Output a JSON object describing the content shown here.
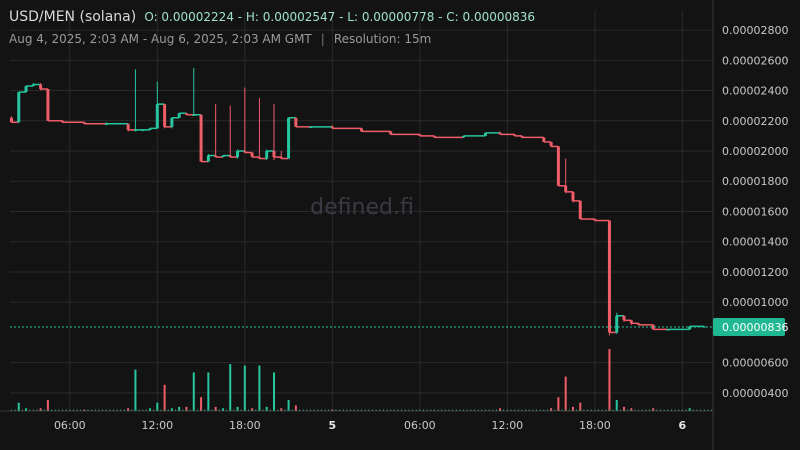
{
  "header": {
    "pair": "USD/MEN (solana)",
    "ohlc": "O: 0.00002224 - H: 0.00002547 - L: 0.00000778 - C: 0.00000836",
    "range": "Aug 4, 2025, 2:03 AM - Aug 6, 2025, 2:03 AM GMT",
    "separator": "|",
    "resolution": "Resolution: 15m"
  },
  "watermark": "defined.fi",
  "colors": {
    "up": "#26c6a0",
    "down": "#ef5d68",
    "grid": "#2a2a2a",
    "price_line": "#26c6a0",
    "background": "#131313"
  },
  "chart_data": {
    "type": "candlestick",
    "symbol": "USD/MEN (solana)",
    "resolution": "15m",
    "x_ticks": [
      {
        "t": 4.0,
        "label": "06:00",
        "bold": false
      },
      {
        "t": 10.0,
        "label": "12:00",
        "bold": false
      },
      {
        "t": 16.0,
        "label": "18:00",
        "bold": false
      },
      {
        "t": 22.0,
        "label": "5",
        "bold": true
      },
      {
        "t": 28.0,
        "label": "06:00",
        "bold": false
      },
      {
        "t": 34.0,
        "label": "12:00",
        "bold": false
      },
      {
        "t": 40.0,
        "label": "18:00",
        "bold": false
      },
      {
        "t": 46.0,
        "label": "6",
        "bold": true
      }
    ],
    "x_range_hours": [
      -0.1,
      48.1
    ],
    "y_ticks": [
      4e-06,
      6e-06,
      1e-05,
      1.2e-05,
      1.4e-05,
      1.6e-05,
      1.8e-05,
      2e-05,
      2.2e-05,
      2.4e-05,
      2.6e-05,
      2.8e-05
    ],
    "y_tick_labels": [
      "0.00000400",
      "0.00000600",
      "0.00001000",
      "0.00001200",
      "0.00001400",
      "0.00001600",
      "0.00001800",
      "0.00002000",
      "0.00002200",
      "0.00002400",
      "0.00002600",
      "0.00002800"
    ],
    "y_range": [
      2.8e-06,
      2.88e-05
    ],
    "last_price": 8.36e-06,
    "last_price_label": "0.00000836",
    "candles": [
      {
        "t": 0.0,
        "o": 2.22e-05,
        "h": 2.23e-05,
        "l": 2.19e-05,
        "c": 2.19e-05
      },
      {
        "t": 0.5,
        "o": 2.19e-05,
        "h": 2.39e-05,
        "l": 2.19e-05,
        "c": 2.39e-05
      },
      {
        "t": 1.0,
        "o": 2.39e-05,
        "h": 2.43e-05,
        "l": 2.39e-05,
        "c": 2.43e-05
      },
      {
        "t": 1.5,
        "o": 2.43e-05,
        "h": 2.45e-05,
        "l": 2.43e-05,
        "c": 2.44e-05
      },
      {
        "t": 2.0,
        "o": 2.44e-05,
        "h": 2.45e-05,
        "l": 2.4e-05,
        "c": 2.41e-05
      },
      {
        "t": 2.5,
        "o": 2.41e-05,
        "h": 2.41e-05,
        "l": 2.2e-05,
        "c": 2.2e-05
      },
      {
        "t": 3.5,
        "o": 2.2e-05,
        "h": 2.2e-05,
        "l": 2.19e-05,
        "c": 2.19e-05
      },
      {
        "t": 5.0,
        "o": 2.19e-05,
        "h": 2.19e-05,
        "l": 2.18e-05,
        "c": 2.18e-05
      },
      {
        "t": 6.5,
        "o": 2.18e-05,
        "h": 2.19e-05,
        "l": 2.18e-05,
        "c": 2.18e-05
      },
      {
        "t": 8.0,
        "o": 2.18e-05,
        "h": 2.18e-05,
        "l": 2.13e-05,
        "c": 2.14e-05
      },
      {
        "t": 8.5,
        "o": 2.14e-05,
        "h": 2.54e-05,
        "l": 2.13e-05,
        "c": 2.14e-05
      },
      {
        "t": 9.0,
        "o": 2.14e-05,
        "h": 2.14e-05,
        "l": 2.14e-05,
        "c": 2.14e-05
      },
      {
        "t": 9.5,
        "o": 2.14e-05,
        "h": 2.15e-05,
        "l": 2.14e-05,
        "c": 2.15e-05
      },
      {
        "t": 10.0,
        "o": 2.15e-05,
        "h": 2.46e-05,
        "l": 2.15e-05,
        "c": 2.31e-05
      },
      {
        "t": 10.5,
        "o": 2.31e-05,
        "h": 2.31e-05,
        "l": 2.15e-05,
        "c": 2.16e-05
      },
      {
        "t": 11.0,
        "o": 2.16e-05,
        "h": 2.22e-05,
        "l": 2.15e-05,
        "c": 2.22e-05
      },
      {
        "t": 11.5,
        "o": 2.22e-05,
        "h": 2.25e-05,
        "l": 2.22e-05,
        "c": 2.25e-05
      },
      {
        "t": 12.0,
        "o": 2.25e-05,
        "h": 2.25e-05,
        "l": 2.24e-05,
        "c": 2.24e-05
      },
      {
        "t": 12.5,
        "o": 2.24e-05,
        "h": 2.55e-05,
        "l": 2.24e-05,
        "c": 2.24e-05
      },
      {
        "t": 13.0,
        "o": 2.24e-05,
        "h": 2.24e-05,
        "l": 1.93e-05,
        "c": 1.93e-05
      },
      {
        "t": 13.5,
        "o": 1.93e-05,
        "h": 1.98e-05,
        "l": 1.93e-05,
        "c": 1.97e-05
      },
      {
        "t": 14.0,
        "o": 1.97e-05,
        "h": 2.31e-05,
        "l": 1.96e-05,
        "c": 1.96e-05
      },
      {
        "t": 14.5,
        "o": 1.96e-05,
        "h": 1.97e-05,
        "l": 1.96e-05,
        "c": 1.97e-05
      },
      {
        "t": 15.0,
        "o": 1.97e-05,
        "h": 2.3e-05,
        "l": 1.96e-05,
        "c": 1.96e-05
      },
      {
        "t": 15.5,
        "o": 1.96e-05,
        "h": 2.01e-05,
        "l": 1.95e-05,
        "c": 2e-05
      },
      {
        "t": 16.0,
        "o": 2e-05,
        "h": 2.42e-05,
        "l": 1.99e-05,
        "c": 1.99e-05
      },
      {
        "t": 16.5,
        "o": 1.99e-05,
        "h": 1.99e-05,
        "l": 1.96e-05,
        "c": 1.96e-05
      },
      {
        "t": 17.0,
        "o": 1.96e-05,
        "h": 2.35e-05,
        "l": 1.95e-05,
        "c": 1.95e-05
      },
      {
        "t": 17.5,
        "o": 1.95e-05,
        "h": 2.01e-05,
        "l": 1.94e-05,
        "c": 2e-05
      },
      {
        "t": 18.0,
        "o": 2e-05,
        "h": 2.31e-05,
        "l": 1.94e-05,
        "c": 1.96e-05
      },
      {
        "t": 18.5,
        "o": 1.96e-05,
        "h": 2e-05,
        "l": 1.95e-05,
        "c": 1.95e-05
      },
      {
        "t": 19.0,
        "o": 1.95e-05,
        "h": 2.22e-05,
        "l": 1.95e-05,
        "c": 2.22e-05
      },
      {
        "t": 19.5,
        "o": 2.22e-05,
        "h": 2.22e-05,
        "l": 2.16e-05,
        "c": 2.16e-05
      },
      {
        "t": 20.5,
        "o": 2.16e-05,
        "h": 2.16e-05,
        "l": 2.16e-05,
        "c": 2.16e-05
      },
      {
        "t": 22.0,
        "o": 2.16e-05,
        "h": 2.17e-05,
        "l": 2.15e-05,
        "c": 2.15e-05
      },
      {
        "t": 24.0,
        "o": 2.15e-05,
        "h": 2.15e-05,
        "l": 2.13e-05,
        "c": 2.13e-05
      },
      {
        "t": 26.0,
        "o": 2.13e-05,
        "h": 2.13e-05,
        "l": 2.11e-05,
        "c": 2.11e-05
      },
      {
        "t": 28.0,
        "o": 2.11e-05,
        "h": 2.11e-05,
        "l": 2.1e-05,
        "c": 2.1e-05
      },
      {
        "t": 29.0,
        "o": 2.1e-05,
        "h": 2.1e-05,
        "l": 2.09e-05,
        "c": 2.09e-05
      },
      {
        "t": 31.0,
        "o": 2.09e-05,
        "h": 2.1e-05,
        "l": 2.09e-05,
        "c": 2.1e-05
      },
      {
        "t": 32.5,
        "o": 2.1e-05,
        "h": 2.12e-05,
        "l": 2.1e-05,
        "c": 2.12e-05
      },
      {
        "t": 33.5,
        "o": 2.12e-05,
        "h": 2.13e-05,
        "l": 2.11e-05,
        "c": 2.11e-05
      },
      {
        "t": 34.5,
        "o": 2.11e-05,
        "h": 2.11e-05,
        "l": 2.1e-05,
        "c": 2.1e-05
      },
      {
        "t": 35.0,
        "o": 2.1e-05,
        "h": 2.1e-05,
        "l": 2.09e-05,
        "c": 2.09e-05
      },
      {
        "t": 36.5,
        "o": 2.09e-05,
        "h": 2.09e-05,
        "l": 2.06e-05,
        "c": 2.06e-05
      },
      {
        "t": 37.0,
        "o": 2.06e-05,
        "h": 2.06e-05,
        "l": 2.03e-05,
        "c": 2.03e-05
      },
      {
        "t": 37.5,
        "o": 2.03e-05,
        "h": 2.03e-05,
        "l": 1.77e-05,
        "c": 1.77e-05
      },
      {
        "t": 38.0,
        "o": 1.77e-05,
        "h": 1.95e-05,
        "l": 1.72e-05,
        "c": 1.73e-05
      },
      {
        "t": 38.5,
        "o": 1.73e-05,
        "h": 1.73e-05,
        "l": 1.66e-05,
        "c": 1.67e-05
      },
      {
        "t": 39.0,
        "o": 1.67e-05,
        "h": 1.67e-05,
        "l": 1.55e-05,
        "c": 1.55e-05
      },
      {
        "t": 40.0,
        "o": 1.55e-05,
        "h": 1.55e-05,
        "l": 1.54e-05,
        "c": 1.54e-05
      },
      {
        "t": 41.0,
        "o": 1.54e-05,
        "h": 1.54e-05,
        "l": 7.8e-06,
        "c": 8e-06
      },
      {
        "t": 41.5,
        "o": 8e-06,
        "h": 9.3e-06,
        "l": 7.9e-06,
        "c": 9.1e-06
      },
      {
        "t": 42.0,
        "o": 9.1e-06,
        "h": 9.1e-06,
        "l": 8.7e-06,
        "c": 8.8e-06
      },
      {
        "t": 42.5,
        "o": 8.8e-06,
        "h": 8.8e-06,
        "l": 8.5e-06,
        "c": 8.6e-06
      },
      {
        "t": 43.0,
        "o": 8.6e-06,
        "h": 8.6e-06,
        "l": 8.5e-06,
        "c": 8.5e-06
      },
      {
        "t": 44.0,
        "o": 8.5e-06,
        "h": 8.5e-06,
        "l": 8.2e-06,
        "c": 8.2e-06
      },
      {
        "t": 45.0,
        "o": 8.2e-06,
        "h": 8.2e-06,
        "l": 8.2e-06,
        "c": 8.2e-06
      },
      {
        "t": 46.5,
        "o": 8.2e-06,
        "h": 8.4e-06,
        "l": 8.2e-06,
        "c": 8.4e-06
      },
      {
        "t": 47.5,
        "o": 8.4e-06,
        "h": 8.4e-06,
        "l": 8.4e-06,
        "c": 8.4e-06
      }
    ],
    "volume": [
      {
        "t": 0.5,
        "v": 6,
        "up": true
      },
      {
        "t": 1.0,
        "v": 2,
        "up": true
      },
      {
        "t": 2.0,
        "v": 2,
        "up": false
      },
      {
        "t": 2.5,
        "v": 8,
        "up": false
      },
      {
        "t": 5.0,
        "v": 1,
        "up": false
      },
      {
        "t": 8.0,
        "v": 2,
        "up": false
      },
      {
        "t": 8.5,
        "v": 30,
        "up": true
      },
      {
        "t": 9.5,
        "v": 2,
        "up": true
      },
      {
        "t": 10.0,
        "v": 6,
        "up": true
      },
      {
        "t": 10.5,
        "v": 19,
        "up": false
      },
      {
        "t": 11.0,
        "v": 2,
        "up": true
      },
      {
        "t": 11.5,
        "v": 3,
        "up": true
      },
      {
        "t": 12.0,
        "v": 3,
        "up": false
      },
      {
        "t": 12.5,
        "v": 28,
        "up": true
      },
      {
        "t": 13.0,
        "v": 10,
        "up": false
      },
      {
        "t": 13.5,
        "v": 28,
        "up": true
      },
      {
        "t": 14.0,
        "v": 3,
        "up": false
      },
      {
        "t": 14.5,
        "v": 2,
        "up": true
      },
      {
        "t": 15.0,
        "v": 34,
        "up": true
      },
      {
        "t": 15.5,
        "v": 3,
        "up": true
      },
      {
        "t": 16.0,
        "v": 33,
        "up": true
      },
      {
        "t": 16.5,
        "v": 2,
        "up": false
      },
      {
        "t": 17.0,
        "v": 33,
        "up": true
      },
      {
        "t": 17.5,
        "v": 3,
        "up": true
      },
      {
        "t": 18.0,
        "v": 28,
        "up": true
      },
      {
        "t": 18.5,
        "v": 2,
        "up": false
      },
      {
        "t": 19.0,
        "v": 8,
        "up": true
      },
      {
        "t": 19.5,
        "v": 4,
        "up": false
      },
      {
        "t": 22.0,
        "v": 1,
        "up": false
      },
      {
        "t": 33.5,
        "v": 2,
        "up": false
      },
      {
        "t": 37.0,
        "v": 2,
        "up": false
      },
      {
        "t": 37.5,
        "v": 10,
        "up": false
      },
      {
        "t": 38.0,
        "v": 25,
        "up": false
      },
      {
        "t": 38.5,
        "v": 3,
        "up": false
      },
      {
        "t": 39.0,
        "v": 6,
        "up": false
      },
      {
        "t": 41.0,
        "v": 45,
        "up": false
      },
      {
        "t": 41.5,
        "v": 8,
        "up": true
      },
      {
        "t": 42.0,
        "v": 3,
        "up": false
      },
      {
        "t": 42.5,
        "v": 2,
        "up": false
      },
      {
        "t": 44.0,
        "v": 2,
        "up": false
      },
      {
        "t": 46.5,
        "v": 2,
        "up": true
      }
    ]
  }
}
